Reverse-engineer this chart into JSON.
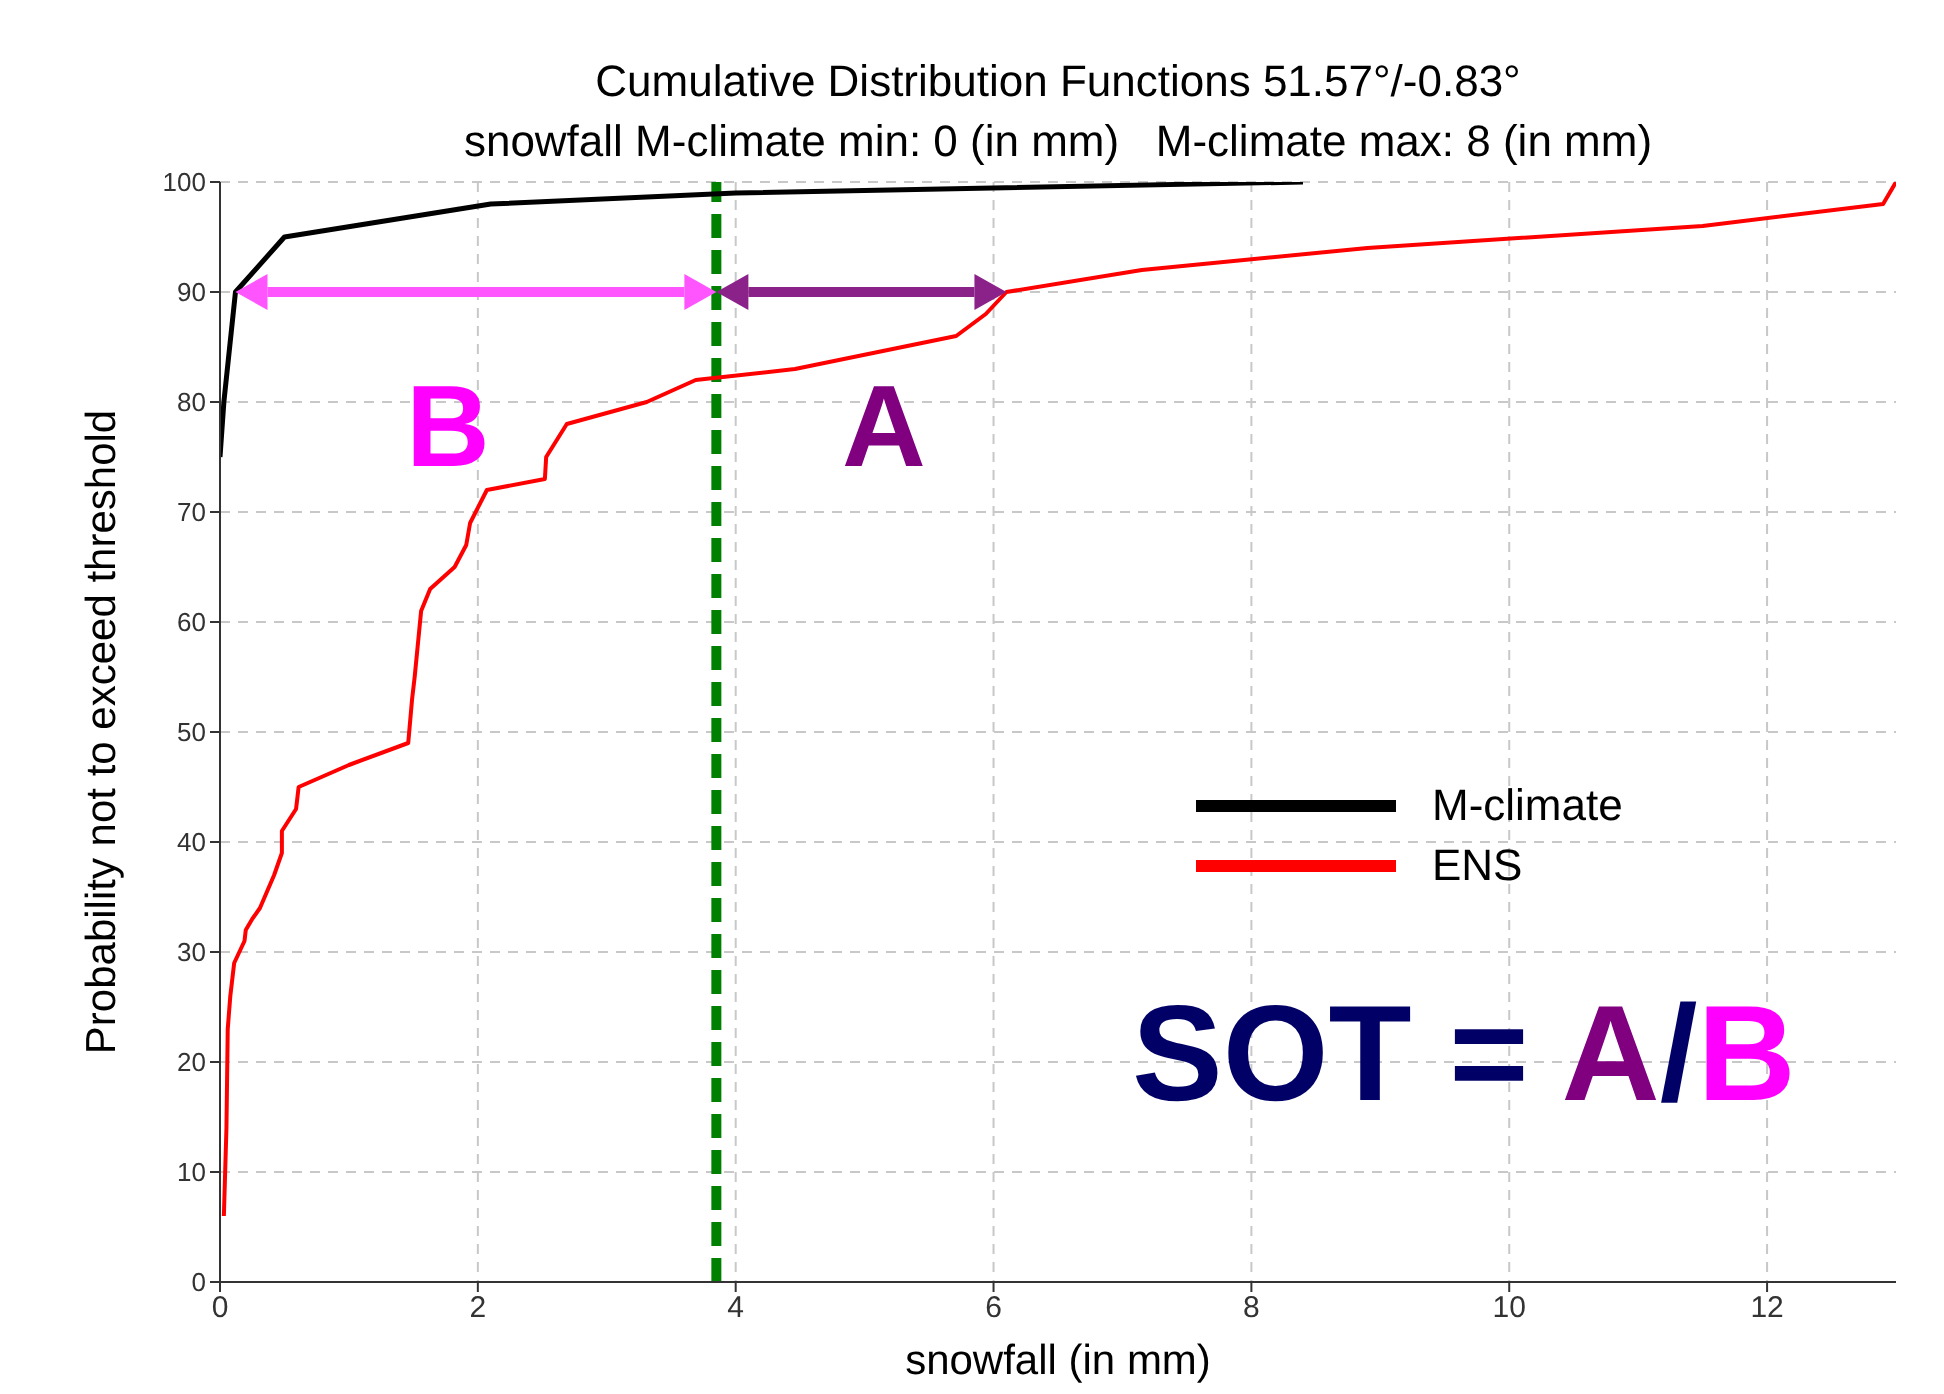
{
  "chart_data": {
    "type": "line",
    "title": "Cumulative Distribution Functions 51.57°/-0.83°",
    "subtitle": "snowfall M-climate min: 0 (in mm)   M-climate max: 8 (in mm)",
    "xlabel": "snowfall  (in mm)",
    "ylabel": "Probability not to exceed threshold",
    "series": [
      {
        "name": "M-climate",
        "color": "#000000",
        "x": [
          0,
          0.03,
          0.12,
          0.5,
          2.1,
          4,
          8.4
        ],
        "values": [
          75,
          80,
          90,
          95,
          98,
          99,
          100
        ]
      },
      {
        "name": "ENS",
        "color": "#ff0000",
        "x": [
          0.03,
          0.05,
          0.06,
          0.08,
          0.11,
          0.19,
          0.2,
          0.25,
          0.31,
          0.42,
          0.48,
          0.48,
          0.59,
          0.61,
          1.0,
          1.46,
          1.49,
          1.51,
          1.56,
          1.63,
          1.82,
          1.91,
          1.94,
          2.07,
          2.52,
          2.53,
          2.69,
          3.31,
          3.69,
          4.46,
          5.71,
          5.94,
          6.1,
          7.15,
          8.9,
          11.5,
          12.9,
          13.0
        ],
        "values": [
          6,
          14,
          23,
          26,
          29,
          31,
          32,
          33,
          34,
          37,
          39,
          41,
          43,
          45,
          47,
          49,
          53,
          55,
          61,
          63,
          65,
          67,
          69,
          72,
          73,
          75,
          78,
          80,
          82,
          83,
          86,
          88,
          90,
          92,
          94,
          96,
          98,
          100
        ]
      }
    ],
    "xlim": [
      0,
      13
    ],
    "xticks": [
      0,
      2,
      4,
      6,
      8,
      10,
      12
    ],
    "ylim": [
      0,
      100
    ],
    "yticks": [
      0,
      10,
      20,
      30,
      40,
      50,
      60,
      70,
      80,
      90,
      100
    ],
    "ref_lines": [
      {
        "axis": "x",
        "value": 3.85,
        "color": "#008000",
        "line_style": "dashed"
      }
    ],
    "annotations": [
      "B",
      "A",
      "SOT = A/B"
    ],
    "grid": true,
    "legend": "right",
    "marker": "none",
    "line_style": "solid"
  }
}
